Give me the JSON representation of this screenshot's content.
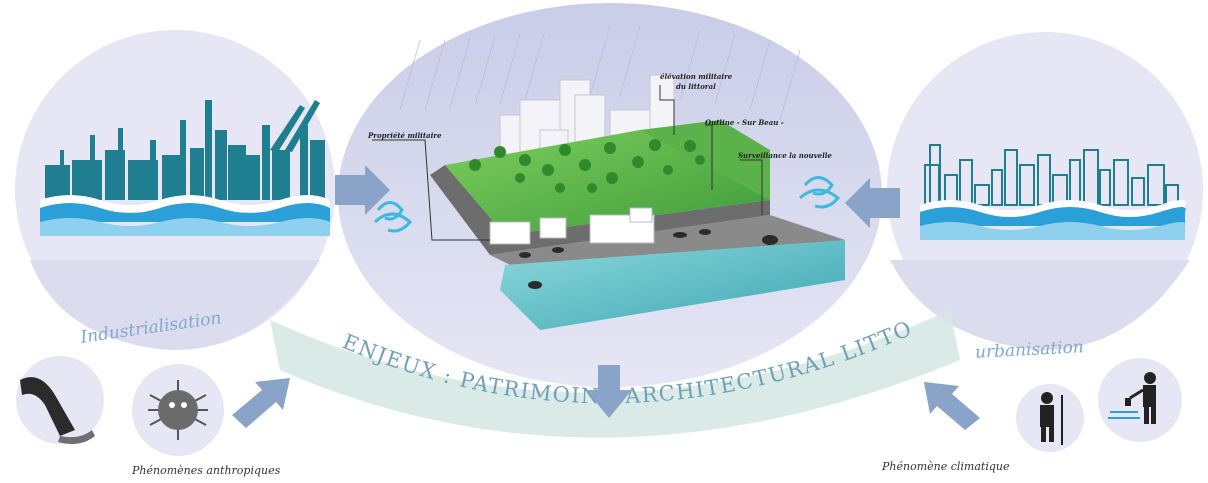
{
  "labels": {
    "industrialisation": "Industrialisation",
    "urbanisation": "urbanisation",
    "enjeux": "ENJEUX : PATRIMOINE ARCHITECTURAL LITTORAL",
    "phenomenes_anthropiques": "Phénomènes anthropiques",
    "phenomene_climatique": "Phénomène climatique"
  },
  "annotations": {
    "propriete": "Propriété militaire",
    "elevation": "élévation militaire",
    "elevation_line2": "du littoral",
    "outline": "Outline - Sur Beau -",
    "surveillance": "Surveillance la nouvelle"
  },
  "colors": {
    "circle_fill": "#e6e6f4",
    "teal": "#1f7f91",
    "wave_blue": "#2a9fd8",
    "arrow_blue": "#8aa3c8",
    "grass": "#4fae44",
    "sea": "#5cc0c8",
    "banner": "#d4e7e3",
    "banner_text": "#6f9fb5"
  }
}
